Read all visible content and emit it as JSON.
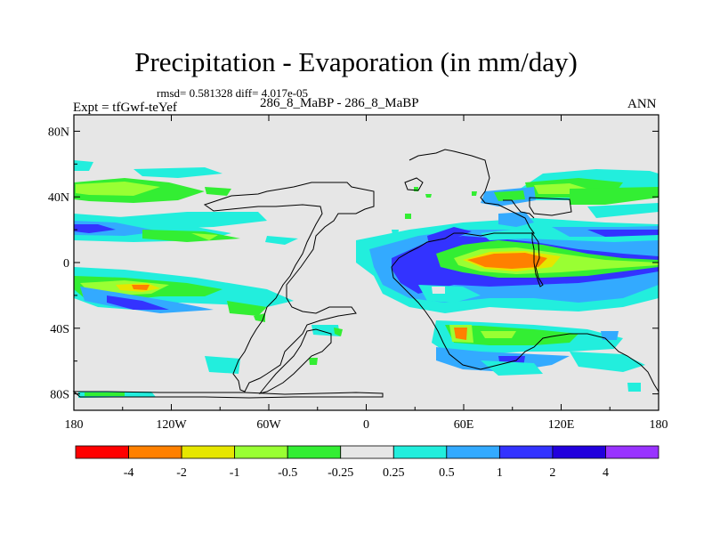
{
  "chart_data": {
    "type": "heatmap",
    "title": "Precipitation - Evaporation (in mm/day)",
    "stats_line": "rmsd= 0.581328 diff= 4.017e-05",
    "left_label": "Expt = tfGwf-teYef",
    "center_label": "286_8_MaBP - 286_8_MaBP",
    "right_label": "ANN",
    "x_ticks": [
      "180",
      "120W",
      "60W",
      "0",
      "60E",
      "120E",
      "180"
    ],
    "x_tick_values": [
      -180,
      -120,
      -60,
      0,
      60,
      120,
      180
    ],
    "y_ticks": [
      "80N",
      "40N",
      "0",
      "40S",
      "80S"
    ],
    "y_tick_values": [
      80,
      40,
      0,
      -40,
      -80
    ],
    "xlim": [
      -180,
      180
    ],
    "ylim": [
      -90,
      90
    ],
    "colorbar": {
      "boundary_labels": [
        "-4",
        "-2",
        "-1",
        "-0.5",
        "-0.25",
        "0.25",
        "0.5",
        "1",
        "2",
        "4"
      ],
      "colors": [
        "#ff0000",
        "#ff8000",
        "#e6e600",
        "#99ff33",
        "#33ee33",
        "#e6e6e6",
        "#22eedd",
        "#33aaff",
        "#3333ff",
        "#2200dd",
        "#9933ff"
      ]
    },
    "background_color": "#e6e6e6"
  }
}
